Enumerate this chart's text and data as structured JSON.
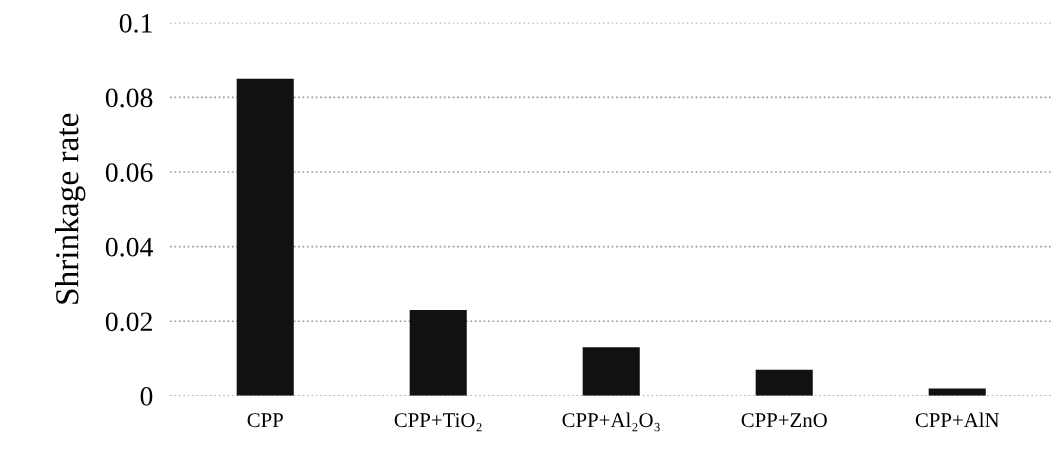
{
  "chart_data": {
    "type": "bar",
    "ylabel": "Shrinkage rate",
    "categories": [
      "CPP",
      "CPP+TiO₂",
      "CPP+Al₂O₃",
      "CPP+ZnO",
      "CPP+AlN"
    ],
    "values": [
      0.085,
      0.023,
      0.013,
      0.007,
      0.002
    ],
    "color": "#111111",
    "ylim": [
      0,
      0.1
    ],
    "yticks": [
      0,
      0.02,
      0.04,
      0.06,
      0.08,
      0.1
    ],
    "grid": "y"
  }
}
